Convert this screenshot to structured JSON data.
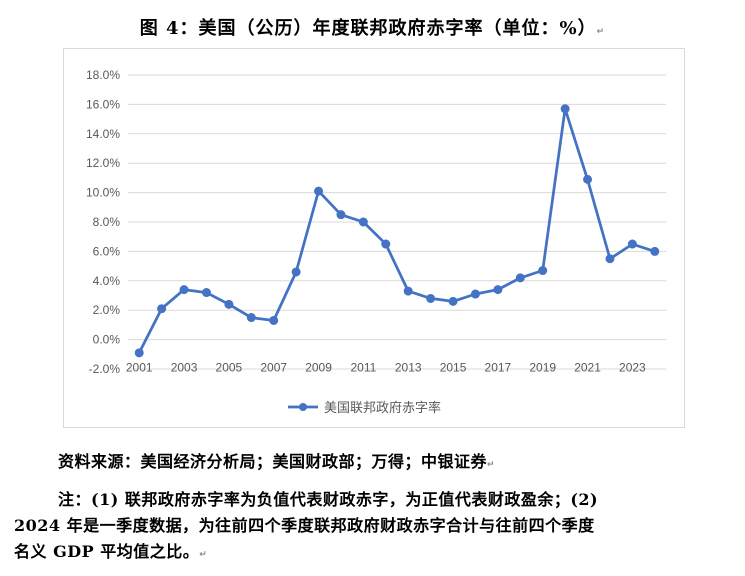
{
  "figure": {
    "title": "图 4：美国（公历）年度联邦政府赤字率（单位：%）",
    "source": "资料来源：美国经济分析局；美国财政部；万得；中银证券",
    "note_line1": "注：(1) 联邦政府赤字率为负值代表财政赤字，为正值代表财政盈余；(2)",
    "note_line2": "2024 年是一季度数据，为往前四个季度联邦政府财政赤字合计与往前四个季度",
    "note_line3": "名义 GDP 平均值之比。",
    "return_mark": "↵"
  },
  "chart_data": {
    "type": "line",
    "x": [
      2001,
      2002,
      2003,
      2004,
      2005,
      2006,
      2007,
      2008,
      2009,
      2010,
      2011,
      2012,
      2013,
      2014,
      2015,
      2016,
      2017,
      2018,
      2019,
      2020,
      2021,
      2022,
      2023,
      2024
    ],
    "x_tick_labels": [
      "2001",
      "2003",
      "2005",
      "2007",
      "2009",
      "2011",
      "2013",
      "2015",
      "2017",
      "2019",
      "2021",
      "2023"
    ],
    "series": [
      {
        "name": "美国联邦政府赤字率",
        "color": "#4472c4",
        "values": [
          -0.9,
          2.1,
          3.4,
          3.2,
          2.4,
          1.5,
          1.3,
          4.6,
          10.1,
          8.5,
          8.0,
          6.5,
          3.3,
          2.8,
          2.6,
          3.1,
          3.4,
          4.2,
          4.7,
          15.7,
          10.9,
          5.5,
          6.5,
          6.0
        ]
      }
    ],
    "y_ticks": [
      "-2.0%",
      "0.0%",
      "2.0%",
      "4.0%",
      "6.0%",
      "8.0%",
      "10.0%",
      "12.0%",
      "14.0%",
      "16.0%",
      "18.0%"
    ],
    "ylim": [
      -2,
      18
    ],
    "grid": true,
    "legend_position": "bottom"
  }
}
